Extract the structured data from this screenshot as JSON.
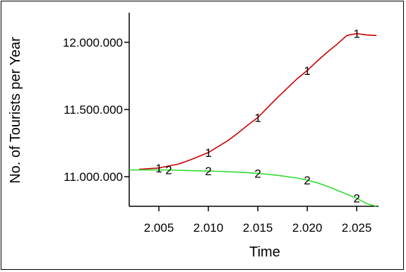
{
  "chart_data": {
    "type": "line",
    "title": "",
    "xlabel": "Time",
    "ylabel": "No. of Tourists per Year",
    "xlim": [
      2002,
      2027.2
    ],
    "ylim": [
      10780000,
      12220000
    ],
    "xticks": [
      2005,
      2010,
      2015,
      2020,
      2025
    ],
    "xtick_labels": [
      "2.005",
      "2.010",
      "2.015",
      "2.020",
      "2.025"
    ],
    "yticks": [
      11000000,
      11500000,
      12000000
    ],
    "ytick_labels": [
      "11.000.000",
      "11.500.000",
      "12.000.000"
    ],
    "grid": false,
    "legend": "none",
    "series": [
      {
        "marker": "1",
        "color": "#cc0000",
        "x": [
          2003,
          2004,
          2005,
          2006,
          2007,
          2008,
          2009,
          2010,
          2011,
          2012,
          2013,
          2014,
          2015,
          2016,
          2017,
          2018,
          2019,
          2020,
          2021,
          2022,
          2023,
          2024,
          2025,
          2026,
          2027
        ],
        "values": [
          11055000,
          11060000,
          11065000,
          11080000,
          11095000,
          11120000,
          11150000,
          11180000,
          11225000,
          11270000,
          11325000,
          11385000,
          11440000,
          11515000,
          11590000,
          11660000,
          11730000,
          11790000,
          11860000,
          11925000,
          11985000,
          12050000,
          12065000,
          12055000,
          12050000
        ],
        "marker_x": [
          2005,
          2010,
          2015,
          2020,
          2025
        ]
      },
      {
        "marker": "2",
        "color": "#33dd33",
        "x": [
          2002,
          2003,
          2004,
          2005,
          2006,
          2007,
          2008,
          2009,
          2010,
          2011,
          2012,
          2013,
          2014,
          2015,
          2016,
          2017,
          2018,
          2019,
          2020,
          2021,
          2022,
          2023,
          2024,
          2025,
          2026,
          2027
        ],
        "values": [
          11050000,
          11050000,
          11050000,
          11050000,
          11050000,
          11048000,
          11046000,
          11044000,
          11042000,
          11040000,
          11037000,
          11034000,
          11030000,
          11025000,
          11018000,
          11010000,
          11000000,
          10990000,
          10975000,
          10955000,
          10930000,
          10900000,
          10870000,
          10840000,
          10800000,
          10780000
        ],
        "marker_x": [
          2006,
          2010,
          2015,
          2020,
          2025
        ]
      }
    ]
  }
}
